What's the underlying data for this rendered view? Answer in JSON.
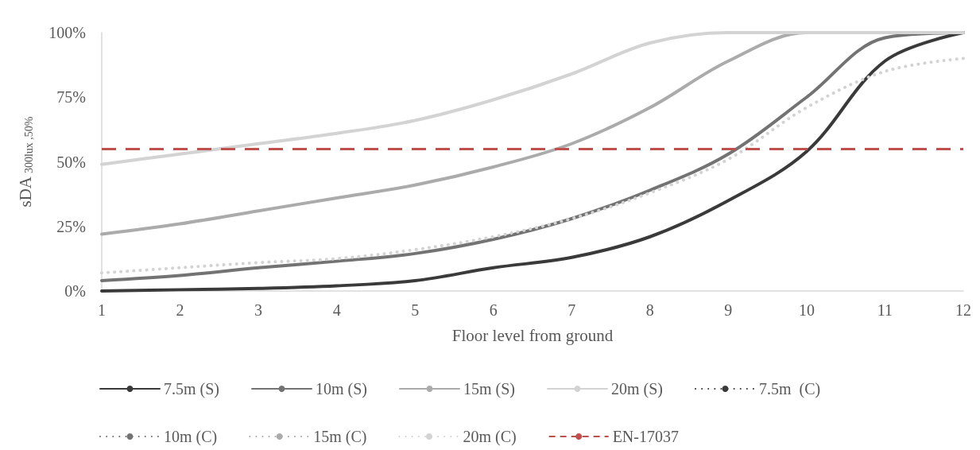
{
  "chart_data": {
    "type": "line",
    "xlabel": "Floor level from ground",
    "ylabel": "sDA$_{300lux ,50%}$",
    "x": [
      1,
      2,
      3,
      4,
      5,
      6,
      7,
      8,
      9,
      10,
      11,
      12
    ],
    "xlim": [
      1,
      12
    ],
    "xticks": [
      1,
      2,
      3,
      4,
      5,
      6,
      7,
      8,
      9,
      10,
      11,
      12
    ],
    "ylim": [
      0,
      100
    ],
    "yticks": [
      {
        "value": 0,
        "label": "0%"
      },
      {
        "value": 25,
        "label": "25%"
      },
      {
        "value": 50,
        "label": "50%"
      },
      {
        "value": 75,
        "label": "75%"
      },
      {
        "value": 100,
        "label": "100%"
      }
    ],
    "grid": false,
    "legend": "bottom",
    "marker": "none",
    "series": [
      {
        "name": "7.5m (S)",
        "color": "#3a3a3a",
        "line_style": "solid",
        "values": [
          0,
          0.5,
          1,
          2,
          4,
          9,
          13,
          21,
          35,
          54,
          89,
          100
        ]
      },
      {
        "name": "10m (S)",
        "color": "#737373",
        "line_style": "solid",
        "values": [
          4,
          6,
          9,
          11.5,
          14.5,
          20,
          28,
          39,
          53,
          75,
          98,
          100
        ]
      },
      {
        "name": "15m (S)",
        "color": "#ababab",
        "line_style": "solid",
        "values": [
          22,
          26,
          31,
          36,
          41,
          48,
          57,
          71,
          89,
          100,
          100,
          100
        ]
      },
      {
        "name": "20m (S)",
        "color": "#d3d3d3",
        "line_style": "solid",
        "values": [
          49,
          53,
          57,
          61,
          66,
          74,
          84,
          96,
          100,
          100,
          100,
          100
        ]
      },
      {
        "name": "7.5m  (C)",
        "color": "#3a3a3a",
        "line_style": "dotted",
        "values": [
          null,
          null,
          null,
          null,
          null,
          null,
          null,
          null,
          null,
          null,
          null,
          null
        ]
      },
      {
        "name": "10m (C)",
        "color": "#737373",
        "line_style": "dotted",
        "values": [
          null,
          null,
          null,
          null,
          null,
          null,
          null,
          null,
          null,
          null,
          null,
          null
        ]
      },
      {
        "name": "15m (C)",
        "color": "#ababab",
        "line_style": "dotted",
        "values": [
          null,
          null,
          null,
          null,
          null,
          null,
          null,
          null,
          null,
          null,
          null,
          null
        ]
      },
      {
        "name": "20m (C)",
        "color": "#d3d3d3",
        "line_style": "dotted",
        "values": [
          7,
          9,
          11,
          12.5,
          16,
          21,
          28,
          38,
          51,
          71,
          85,
          90
        ]
      }
    ],
    "ref_lines": [
      {
        "axis": "y",
        "value": 55,
        "label": "EN-17037",
        "color": "#c0504d",
        "line_style": "dashed"
      }
    ]
  }
}
